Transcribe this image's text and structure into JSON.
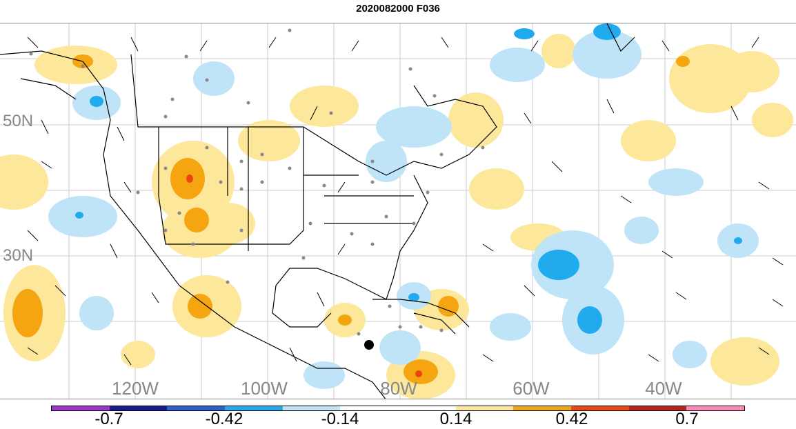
{
  "title": "2020082000 F036",
  "lat_labels": [
    "50N",
    "30N"
  ],
  "lon_labels": [
    "120W",
    "100W",
    "80W",
    "60W",
    "40W"
  ],
  "colorbar": {
    "colors": [
      "#a033cc",
      "#1a1a8c",
      "#2b5fd0",
      "#22aaee",
      "#bfe3f7",
      "#ffffff",
      "#ffffff",
      "#fde79a",
      "#f5a510",
      "#ee4411",
      "#b82222",
      "#ff88bb"
    ],
    "labels": [
      "-0.7",
      "-0.42",
      "-0.14",
      "0.14",
      "0.42",
      "0.7"
    ]
  },
  "legend_colors": {
    "light_blue": "#bfe3f7",
    "medium_blue": "#22aaee",
    "light_yellow": "#fde79a",
    "orange": "#f5a510",
    "red": "#ee4411"
  }
}
